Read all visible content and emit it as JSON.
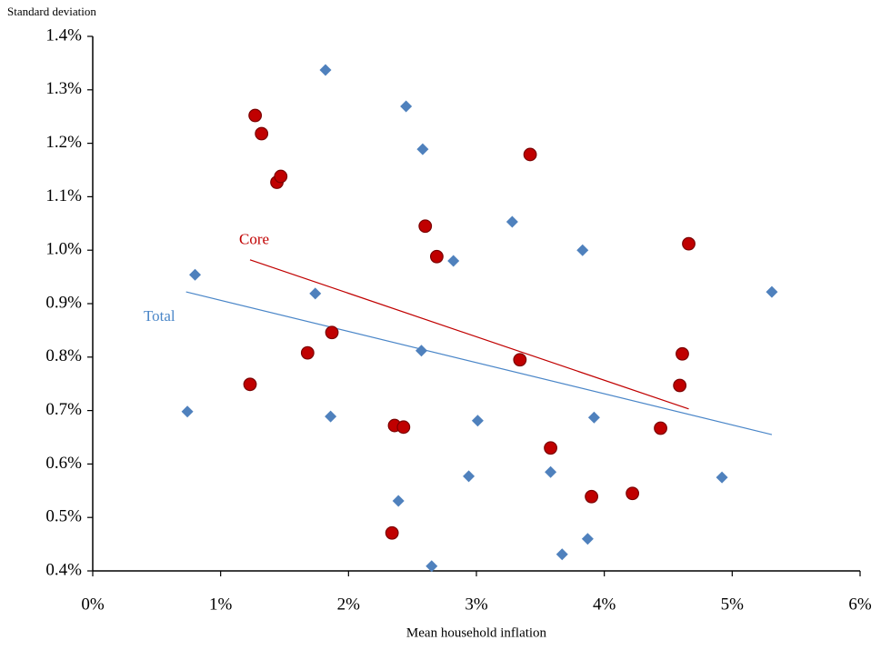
{
  "chart_data": {
    "type": "scatter",
    "y_label": "Standard deviation",
    "x_label": "Mean household inflation",
    "xlim": [
      0,
      6
    ],
    "ylim": [
      0.4,
      1.4
    ],
    "xticks": [
      {
        "value": 0,
        "label": "0%"
      },
      {
        "value": 1,
        "label": "1%"
      },
      {
        "value": 2,
        "label": "2%"
      },
      {
        "value": 3,
        "label": "3%"
      },
      {
        "value": 4,
        "label": "4%"
      },
      {
        "value": 5,
        "label": "5%"
      },
      {
        "value": 6,
        "label": "6%"
      }
    ],
    "yticks": [
      {
        "value": 0.4,
        "label": "0.4%"
      },
      {
        "value": 0.5,
        "label": "0.5%"
      },
      {
        "value": 0.6,
        "label": "0.6%"
      },
      {
        "value": 0.7,
        "label": "0.7%"
      },
      {
        "value": 0.8,
        "label": "0.8%"
      },
      {
        "value": 0.9,
        "label": "0.9%"
      },
      {
        "value": 1.0,
        "label": "1.0%"
      },
      {
        "value": 1.1,
        "label": "1.1%"
      },
      {
        "value": 1.2,
        "label": "1.2%"
      },
      {
        "value": 1.3,
        "label": "1.3%"
      },
      {
        "value": 1.4,
        "label": "1.4%"
      }
    ],
    "grid": false,
    "series": [
      {
        "name": "Total",
        "color": "#4f81bd",
        "line_color": "#4a86c8",
        "marker": "diamond",
        "x": [
          1.82,
          2.45,
          2.58,
          3.28,
          3.83,
          2.82,
          0.8,
          1.74,
          5.31,
          2.57,
          0.74,
          1.86,
          3.01,
          3.92,
          2.94,
          3.58,
          4.92,
          2.39,
          3.87,
          3.67,
          2.65
        ],
        "values": [
          1.337,
          1.269,
          1.189,
          1.053,
          1.0,
          0.98,
          0.954,
          0.919,
          0.922,
          0.812,
          0.698,
          0.689,
          0.681,
          0.687,
          0.577,
          0.585,
          0.575,
          0.531,
          0.46,
          0.431,
          0.409
        ],
        "trend": {
          "x": [
            0.73,
            5.31
          ],
          "values": [
            0.922,
            0.655
          ]
        }
      },
      {
        "name": "Core",
        "color": "#c00000",
        "line_color": "#c00000",
        "marker": "circle",
        "x": [
          1.27,
          1.32,
          1.44,
          1.47,
          3.42,
          2.6,
          2.69,
          4.66,
          1.68,
          1.87,
          3.34,
          4.61,
          4.59,
          1.23,
          2.36,
          2.43,
          4.44,
          3.58,
          3.9,
          4.22,
          2.34
        ],
        "values": [
          1.252,
          1.218,
          1.127,
          1.138,
          1.179,
          1.045,
          0.988,
          1.012,
          0.808,
          0.846,
          0.795,
          0.806,
          0.747,
          0.749,
          0.672,
          0.669,
          0.667,
          0.63,
          0.539,
          0.545,
          0.471
        ],
        "trend": {
          "x": [
            1.23,
            4.66
          ],
          "values": [
            0.982,
            0.703
          ]
        }
      }
    ]
  }
}
